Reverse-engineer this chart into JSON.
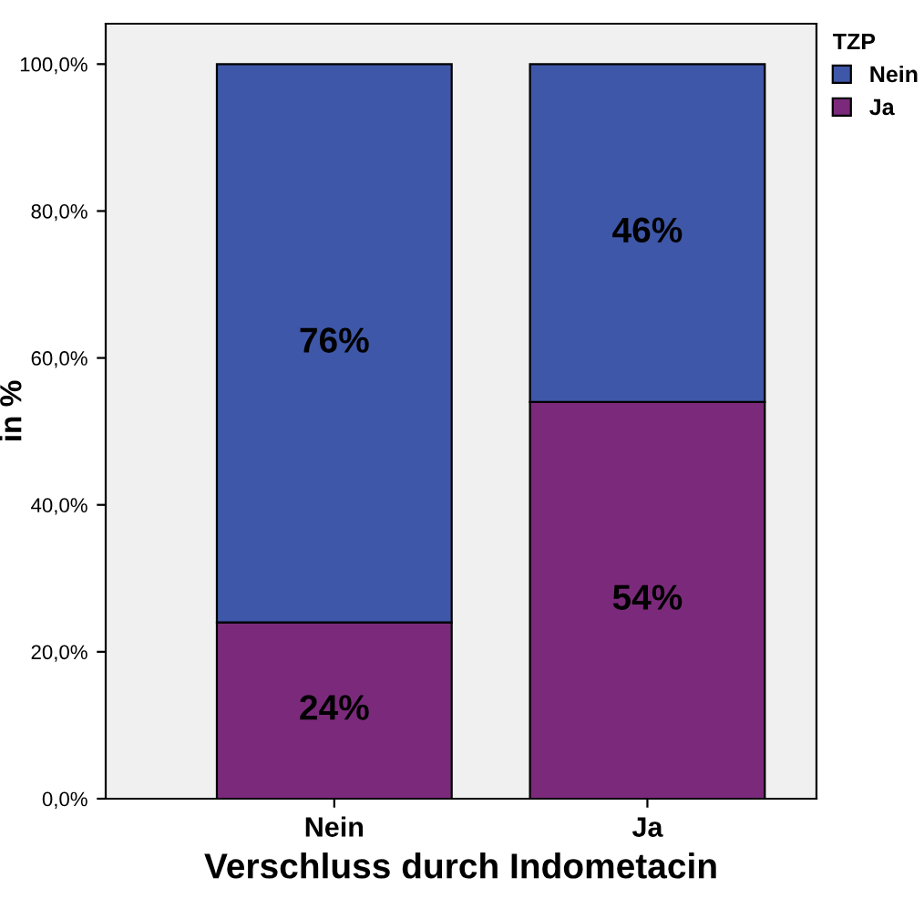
{
  "chart_data": {
    "type": "bar",
    "stacked": true,
    "xlabel": "Verschluss durch Indometacin",
    "ylabel": "in %",
    "legend_title": "TZP",
    "legend": "top right",
    "categories": [
      "Nein",
      "Ja"
    ],
    "series": [
      {
        "name": "Ja",
        "color": "#7b2a7b",
        "values": [
          24,
          54
        ],
        "value_labels": [
          "24%",
          "54%"
        ]
      },
      {
        "name": "Nein",
        "color": "#3f57a8",
        "values": [
          76,
          46
        ],
        "value_labels": [
          "76%",
          "46%"
        ]
      }
    ],
    "ylim": [
      0,
      105.5
    ],
    "yticks": [
      {
        "value": 0,
        "label": "0,0%"
      },
      {
        "value": 20,
        "label": "20,0%"
      },
      {
        "value": 40,
        "label": "40,0%"
      },
      {
        "value": 60,
        "label": "60,0%"
      },
      {
        "value": 80,
        "label": "80,0%"
      },
      {
        "value": 100,
        "label": "100,0%"
      }
    ],
    "grid": false
  }
}
